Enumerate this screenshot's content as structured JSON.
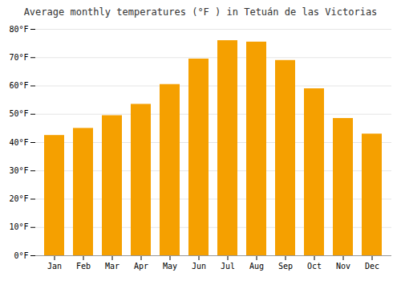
{
  "chart_data": {
    "type": "bar",
    "title": "Average monthly temperatures (°F ) in Tetuán de las Victorias",
    "categories": [
      "Jan",
      "Feb",
      "Mar",
      "Apr",
      "May",
      "Jun",
      "Jul",
      "Aug",
      "Sep",
      "Oct",
      "Nov",
      "Dec"
    ],
    "values": [
      42.5,
      45.0,
      49.5,
      53.5,
      60.5,
      69.5,
      76.0,
      75.5,
      69.0,
      59.0,
      48.5,
      43.0
    ],
    "color": "#F5A000",
    "ylim": [
      0,
      80
    ],
    "yticks": [
      {
        "value": 0,
        "label": "0°F"
      },
      {
        "value": 10,
        "label": "10°F"
      },
      {
        "value": 20,
        "label": "20°F"
      },
      {
        "value": 30,
        "label": "30°F"
      },
      {
        "value": 40,
        "label": "40°F"
      },
      {
        "value": 50,
        "label": "50°F"
      },
      {
        "value": 60,
        "label": "60°F"
      },
      {
        "value": 70,
        "label": "70°F"
      },
      {
        "value": 80,
        "label": "80°F"
      }
    ],
    "grid": true
  }
}
